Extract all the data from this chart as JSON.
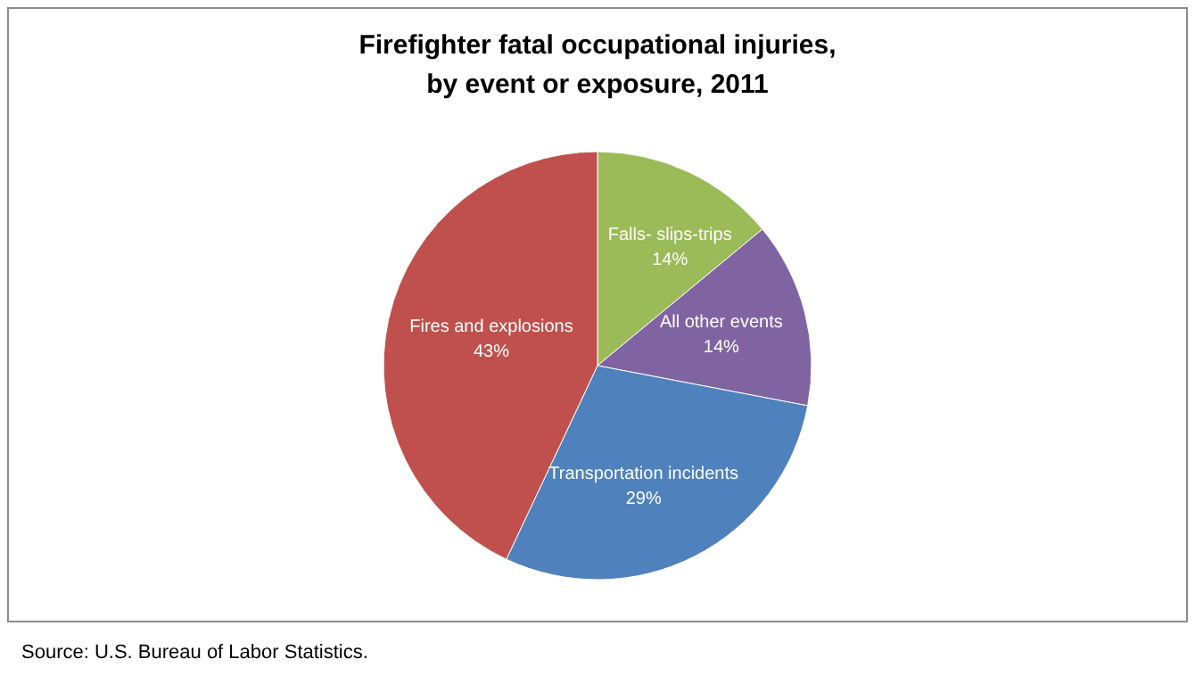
{
  "chart_data": {
    "type": "pie",
    "title": "Firefighter fatal occupational injuries,\nby event or exposure, 2011",
    "categories": [
      "Falls- slips-trips",
      "All other events",
      "Transportation incidents",
      "Fires and explosions"
    ],
    "values": [
      14,
      14,
      29,
      43
    ],
    "colors": [
      "#9bbb59",
      "#8064a2",
      "#4f81bd",
      "#c0504d"
    ],
    "annotations": [
      "Source: U.S. Bureau of Labor Statistics."
    ],
    "value_labels": [
      "14%",
      "14%",
      "29%",
      "43%"
    ],
    "legend": false
  }
}
